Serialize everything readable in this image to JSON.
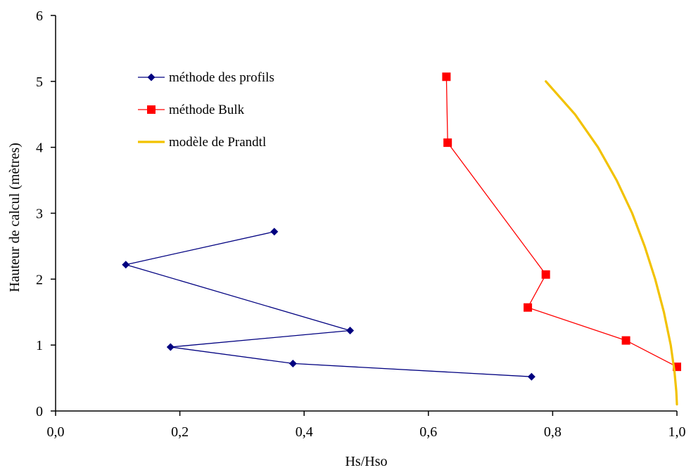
{
  "chart_data": {
    "type": "line",
    "title": "",
    "xlabel": "Hs/Hso",
    "ylabel": "Hauteur de calcul (mètres)",
    "xlim": [
      0,
      1
    ],
    "ylim": [
      0,
      6
    ],
    "x_ticks": [
      0,
      0.2,
      0.4,
      0.6,
      0.8,
      1.0
    ],
    "x_tick_labels": [
      "0,0",
      "0,2",
      "0,4",
      "0,6",
      "0,8",
      "1,0"
    ],
    "y_ticks": [
      0,
      1,
      2,
      3,
      4,
      5,
      6
    ],
    "y_tick_labels": [
      "0",
      "1",
      "2",
      "3",
      "4",
      "5",
      "6"
    ],
    "grid": false,
    "legend_position": "top-left",
    "series": [
      {
        "name": "méthode des profils",
        "color": "#000080",
        "marker": "diamond",
        "points": [
          {
            "x": 0.352,
            "y": 2.72
          },
          {
            "x": 0.113,
            "y": 2.22
          },
          {
            "x": 0.474,
            "y": 1.22
          },
          {
            "x": 0.185,
            "y": 0.97
          },
          {
            "x": 0.382,
            "y": 0.72
          },
          {
            "x": 0.766,
            "y": 0.52
          }
        ]
      },
      {
        "name": "méthode Bulk",
        "color": "#ff0000",
        "marker": "square",
        "points": [
          {
            "x": 0.629,
            "y": 5.07
          },
          {
            "x": 0.631,
            "y": 4.07
          },
          {
            "x": 0.789,
            "y": 2.07
          },
          {
            "x": 0.76,
            "y": 1.57
          },
          {
            "x": 0.918,
            "y": 1.07
          },
          {
            "x": 1.0,
            "y": 0.67
          }
        ]
      },
      {
        "name": "modèle de Prandtl",
        "color": "#f2c200",
        "marker": "none",
        "points": [
          {
            "x": 0.789,
            "y": 5.0
          },
          {
            "x": 0.836,
            "y": 4.5
          },
          {
            "x": 0.873,
            "y": 4.0
          },
          {
            "x": 0.903,
            "y": 3.5
          },
          {
            "x": 0.928,
            "y": 3.0
          },
          {
            "x": 0.948,
            "y": 2.5
          },
          {
            "x": 0.965,
            "y": 2.0
          },
          {
            "x": 0.979,
            "y": 1.5
          },
          {
            "x": 0.99,
            "y": 1.0
          },
          {
            "x": 0.996,
            "y": 0.6
          },
          {
            "x": 0.999,
            "y": 0.3
          },
          {
            "x": 1.0,
            "y": 0.1
          }
        ]
      }
    ]
  }
}
